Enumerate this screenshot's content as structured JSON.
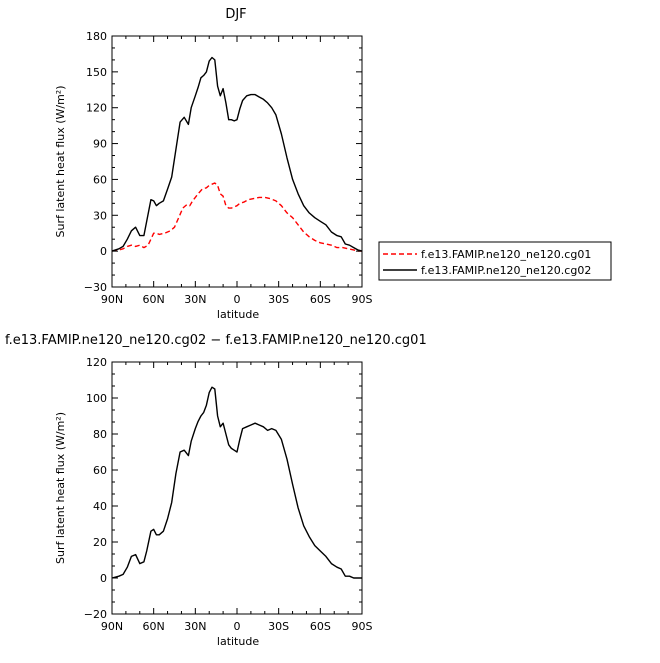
{
  "chart_data": [
    {
      "type": "line",
      "title": "DJF",
      "xlabel": "latitude",
      "ylabel": "Surf latent heat flux (W/m²)",
      "xlim": [
        90,
        -90
      ],
      "ylim": [
        -30,
        180
      ],
      "xticks": [
        90,
        60,
        30,
        0,
        -30,
        -60,
        -90
      ],
      "xtick_labels": [
        "90N",
        "60N",
        "30N",
        "0",
        "30S",
        "60S",
        "90S"
      ],
      "yticks": [
        -30,
        0,
        30,
        60,
        90,
        120,
        150,
        180
      ],
      "ytick_labels": [
        "−30",
        "0",
        "30",
        "60",
        "90",
        "120",
        "150",
        "180"
      ],
      "legend_position": "right",
      "series": [
        {
          "name": "f.e13.FAMIP.ne120_ne120.cg01",
          "color": "#ff0000",
          "dash": "dashed",
          "x": [
            90,
            85,
            82,
            79,
            76,
            73,
            70,
            67,
            64,
            62,
            60,
            58,
            56,
            52,
            48,
            45,
            42,
            39,
            36,
            34,
            32,
            30,
            28,
            25,
            22,
            20,
            18,
            16,
            14,
            12,
            10,
            8,
            6,
            4,
            2,
            0,
            -2,
            -5,
            -8,
            -12,
            -16,
            -20,
            -24,
            -28,
            -32,
            -36,
            -40,
            -44,
            -48,
            -52,
            -56,
            -60,
            -64,
            -68,
            -72,
            -76,
            -80,
            -84,
            -87,
            -90
          ],
          "y": [
            0,
            1,
            2,
            4,
            5,
            4,
            5,
            3,
            5,
            10,
            15,
            15,
            14,
            15,
            17,
            20,
            28,
            36,
            39,
            38,
            42,
            45,
            48,
            52,
            53,
            55,
            56,
            57,
            55,
            48,
            46,
            38,
            36,
            36,
            37,
            38,
            40,
            41,
            43,
            44,
            45,
            45,
            44,
            42,
            38,
            32,
            28,
            22,
            16,
            12,
            9,
            7,
            6,
            5,
            3,
            3,
            2,
            1,
            0,
            0
          ]
        },
        {
          "name": "f.e13.FAMIP.ne120_ne120.cg02",
          "color": "#000000",
          "dash": "solid",
          "x": [
            90,
            85,
            82,
            79,
            76,
            73,
            70,
            67,
            65,
            62,
            60,
            58,
            56,
            53,
            50,
            47,
            44,
            41,
            38,
            35,
            33,
            30,
            28,
            26,
            24,
            22,
            20,
            18,
            16,
            14,
            12,
            10,
            8,
            6,
            4,
            2,
            0,
            -2,
            -4,
            -7,
            -10,
            -13,
            -16,
            -19,
            -22,
            -25,
            -28,
            -32,
            -36,
            -40,
            -44,
            -48,
            -52,
            -56,
            -60,
            -64,
            -68,
            -72,
            -75,
            -78,
            -81,
            -84,
            -87,
            -90
          ],
          "y": [
            0,
            2,
            4,
            10,
            17,
            20,
            13,
            13,
            25,
            43,
            42,
            38,
            40,
            42,
            52,
            62,
            85,
            108,
            112,
            106,
            120,
            130,
            137,
            145,
            147,
            150,
            159,
            162,
            160,
            138,
            130,
            136,
            124,
            110,
            110,
            109,
            110,
            119,
            126,
            130,
            131,
            131,
            129,
            127,
            124,
            120,
            114,
            98,
            78,
            60,
            48,
            38,
            32,
            28,
            25,
            22,
            16,
            13,
            12,
            6,
            5,
            3,
            1,
            0
          ]
        }
      ]
    },
    {
      "type": "line",
      "title": "f.e13.FAMIP.ne120_ne120.cg02 − f.e13.FAMIP.ne120_ne120.cg01",
      "xlabel": "latitude",
      "ylabel": "Surf latent heat flux (W/m²)",
      "xlim": [
        90,
        -90
      ],
      "ylim": [
        -20,
        120
      ],
      "xticks": [
        90,
        60,
        30,
        0,
        -30,
        -60,
        -90
      ],
      "xtick_labels": [
        "90N",
        "60N",
        "30N",
        "0",
        "30S",
        "60S",
        "90S"
      ],
      "yticks": [
        -20,
        0,
        20,
        40,
        60,
        80,
        100,
        120
      ],
      "ytick_labels": [
        "−20",
        "0",
        "20",
        "40",
        "60",
        "80",
        "100",
        "120"
      ],
      "series": [
        {
          "color": "#000000",
          "dash": "solid",
          "x": [
            90,
            85,
            82,
            79,
            76,
            73,
            70,
            67,
            65,
            62,
            60,
            58,
            56,
            53,
            50,
            47,
            44,
            41,
            38,
            35,
            33,
            30,
            28,
            26,
            24,
            22,
            20,
            18,
            16,
            14,
            12,
            10,
            8,
            6,
            4,
            2,
            0,
            -2,
            -4,
            -7,
            -10,
            -13,
            -16,
            -19,
            -22,
            -25,
            -28,
            -32,
            -36,
            -40,
            -44,
            -48,
            -52,
            -56,
            -60,
            -64,
            -68,
            -72,
            -75,
            -78,
            -81,
            -84,
            -87,
            -90
          ],
          "y": [
            0,
            1,
            2,
            6,
            12,
            13,
            8,
            9,
            15,
            26,
            27,
            24,
            24,
            26,
            33,
            42,
            58,
            70,
            71,
            68,
            76,
            83,
            87,
            90,
            92,
            96,
            103,
            106,
            105,
            90,
            84,
            86,
            80,
            74,
            72,
            71,
            70,
            77,
            83,
            84,
            85,
            86,
            85,
            84,
            82,
            83,
            82,
            77,
            66,
            52,
            39,
            29,
            23,
            18,
            15,
            12,
            8,
            6,
            5,
            1,
            1,
            0,
            0,
            0
          ]
        }
      ]
    }
  ]
}
